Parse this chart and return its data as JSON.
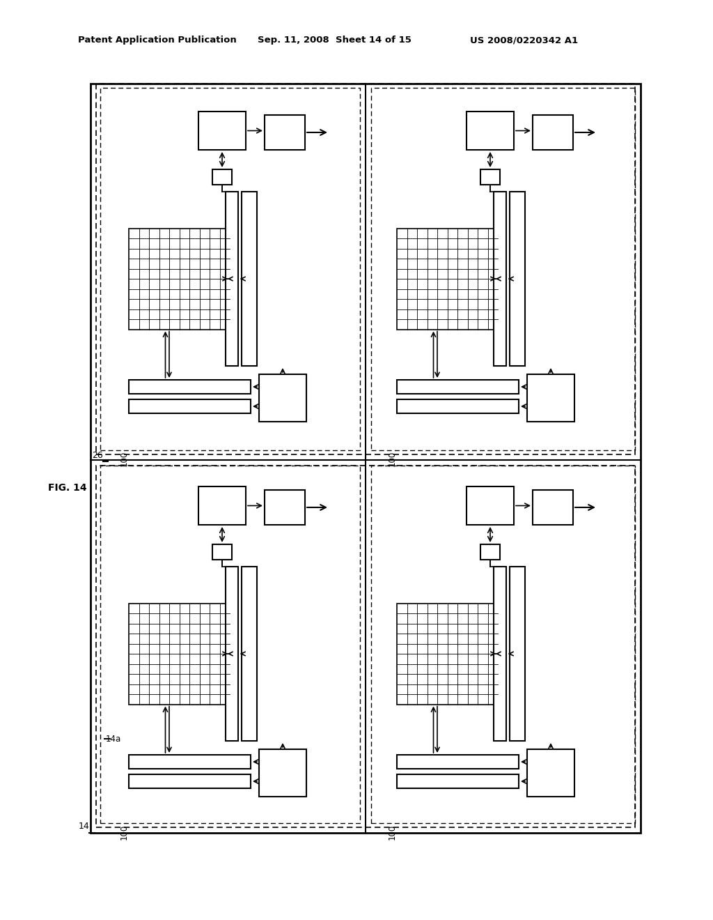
{
  "header_left": "Patent Application Publication",
  "header_center": "Sep. 11, 2008  Sheet 14 of 15",
  "header_right": "US 2008/0220342 A1",
  "figure_label": "FIG. 14",
  "label_26": "26",
  "label_14": "14",
  "label_14a": "14a",
  "label_100": "100",
  "bg_color": "#ffffff",
  "line_color": "#000000"
}
